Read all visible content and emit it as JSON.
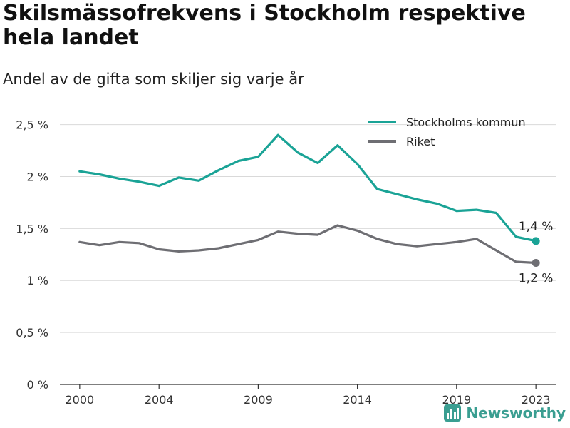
{
  "title": "Skilsmässofrekvens i Stockholm respektive hela landet",
  "subtitle": "Andel av de gifta som skiljer sig varje år",
  "brand": {
    "name": "Newsworthy",
    "icon": "bar-chart-logo-icon",
    "color": "#3a9e91"
  },
  "chart_data": {
    "type": "line",
    "x": [
      2000,
      2001,
      2002,
      2003,
      2004,
      2005,
      2006,
      2007,
      2008,
      2009,
      2010,
      2011,
      2012,
      2013,
      2014,
      2015,
      2016,
      2017,
      2018,
      2019,
      2020,
      2021,
      2022,
      2023
    ],
    "x_ticks": [
      2000,
      2004,
      2009,
      2014,
      2019,
      2023
    ],
    "x_tick_labels": [
      "2000",
      "2004",
      "2009",
      "2014",
      "2019",
      "2023"
    ],
    "xlim": [
      1999,
      2024
    ],
    "ylim": [
      0,
      2.6
    ],
    "y_ticks": [
      0,
      0.5,
      1,
      1.5,
      2,
      2.5
    ],
    "y_tick_labels": [
      "0 %",
      "0,5 %",
      "1 %",
      "1,5 %",
      "2 %",
      "2,5 %"
    ],
    "grid": "horizontal",
    "legend": "top-right",
    "series": [
      {
        "name": "Stockholms kommun",
        "color": "#1aa396",
        "end_label": "1,4 %",
        "values": [
          2.05,
          2.02,
          1.98,
          1.95,
          1.91,
          1.99,
          1.96,
          2.06,
          2.15,
          2.19,
          2.4,
          2.23,
          2.13,
          2.3,
          2.12,
          1.88,
          1.83,
          1.78,
          1.74,
          1.67,
          1.68,
          1.65,
          1.42,
          1.38
        ]
      },
      {
        "name": "Riket",
        "color": "#6e6e73",
        "end_label": "1,2 %",
        "values": [
          1.37,
          1.34,
          1.37,
          1.36,
          1.3,
          1.28,
          1.29,
          1.31,
          1.35,
          1.39,
          1.47,
          1.45,
          1.44,
          1.53,
          1.48,
          1.4,
          1.35,
          1.33,
          1.35,
          1.37,
          1.4,
          1.29,
          1.18,
          1.17
        ]
      }
    ]
  }
}
